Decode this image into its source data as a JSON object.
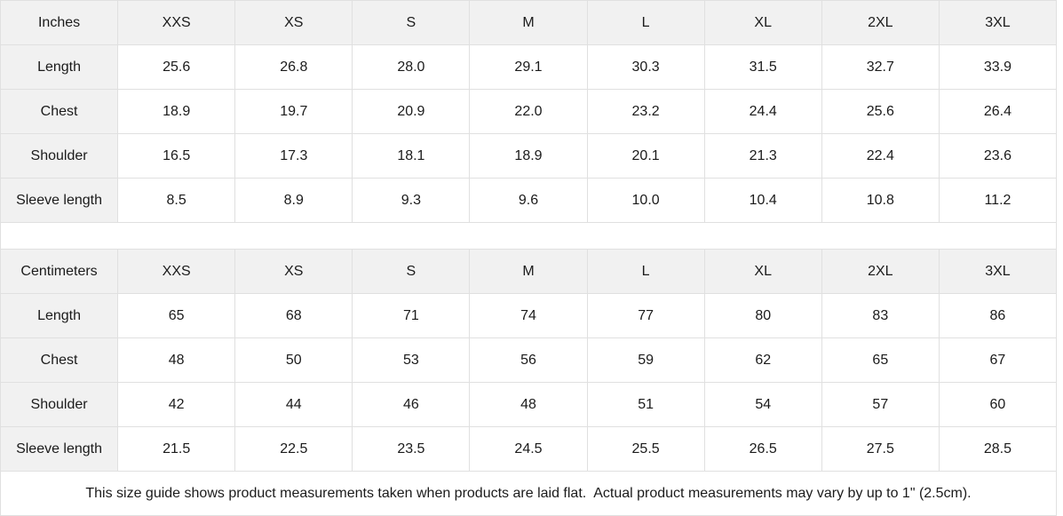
{
  "size_chart": {
    "columns": [
      "XXS",
      "XS",
      "S",
      "M",
      "L",
      "XL",
      "2XL",
      "3XL"
    ],
    "tables": [
      {
        "unit_label": "Inches",
        "rows": [
          {
            "label": "Length",
            "values": [
              "25.6",
              "26.8",
              "28.0",
              "29.1",
              "30.3",
              "31.5",
              "32.7",
              "33.9"
            ]
          },
          {
            "label": "Chest",
            "values": [
              "18.9",
              "19.7",
              "20.9",
              "22.0",
              "23.2",
              "24.4",
              "25.6",
              "26.4"
            ]
          },
          {
            "label": "Shoulder",
            "values": [
              "16.5",
              "17.3",
              "18.1",
              "18.9",
              "20.1",
              "21.3",
              "22.4",
              "23.6"
            ]
          },
          {
            "label": "Sleeve length",
            "values": [
              "8.5",
              "8.9",
              "9.3",
              "9.6",
              "10.0",
              "10.4",
              "10.8",
              "11.2"
            ]
          }
        ]
      },
      {
        "unit_label": "Centimeters",
        "rows": [
          {
            "label": "Length",
            "values": [
              "65",
              "68",
              "71",
              "74",
              "77",
              "80",
              "83",
              "86"
            ]
          },
          {
            "label": "Chest",
            "values": [
              "48",
              "50",
              "53",
              "56",
              "59",
              "62",
              "65",
              "67"
            ]
          },
          {
            "label": "Shoulder",
            "values": [
              "42",
              "44",
              "46",
              "48",
              "51",
              "54",
              "57",
              "60"
            ]
          },
          {
            "label": "Sleeve length",
            "values": [
              "21.5",
              "22.5",
              "23.5",
              "24.5",
              "25.5",
              "26.5",
              "27.5",
              "28.5"
            ]
          }
        ]
      }
    ]
  },
  "footer": {
    "note": "This size guide shows product measurements taken when products are laid flat.  Actual product measurements may vary by up to 1\" (2.5cm)."
  },
  "colors": {
    "header_background": "#f1f1f1",
    "cell_background": "#ffffff",
    "border": "#e0e0e0",
    "text": "#1b1b1b"
  }
}
